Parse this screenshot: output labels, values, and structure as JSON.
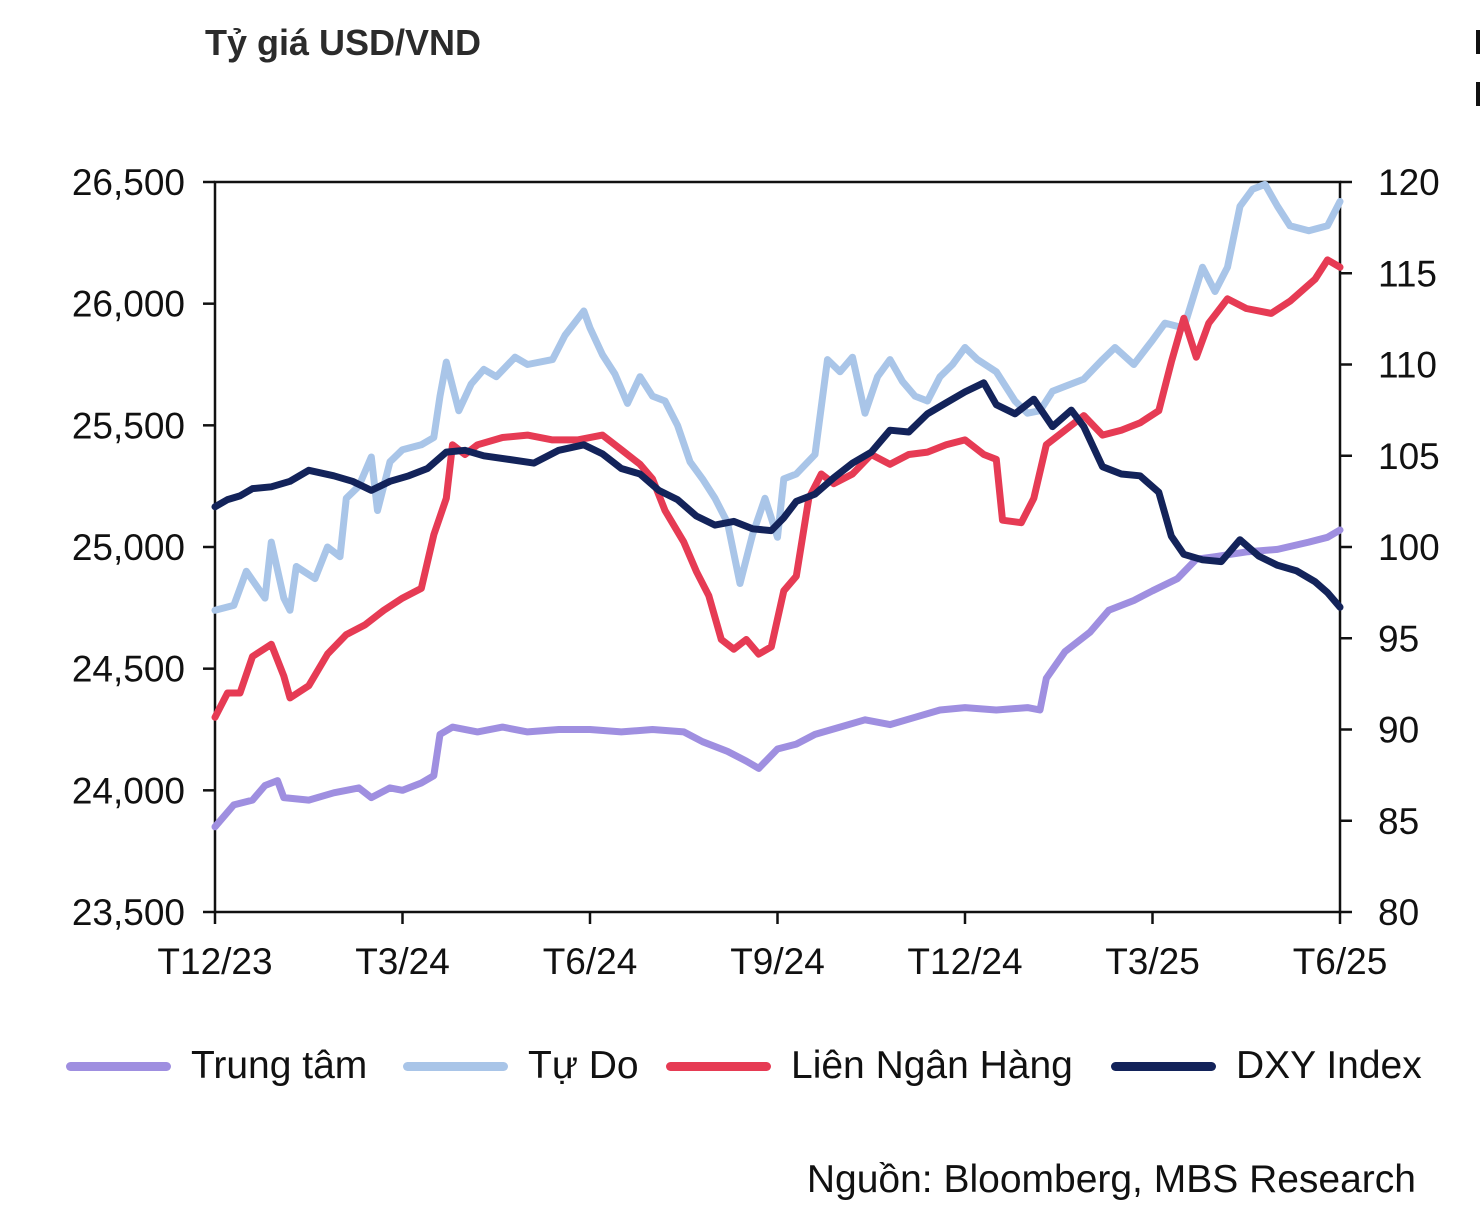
{
  "chart_data": {
    "type": "line",
    "title": "Tỷ giá USD/VND",
    "source": "Nguồn: Bloomberg, MBS Research",
    "x_ticks": [
      "T12/23",
      "T3/24",
      "T6/24",
      "T9/24",
      "T12/24",
      "T3/25",
      "T6/25"
    ],
    "x_range_months": [
      0,
      18
    ],
    "left_axis": {
      "ylim": [
        23500,
        26500
      ],
      "ticks": [
        23500,
        24000,
        24500,
        25000,
        25500,
        26000,
        26500
      ],
      "tick_labels": [
        "23,500",
        "24,000",
        "24,500",
        "25,000",
        "25,500",
        "26,000",
        "26,500"
      ]
    },
    "right_axis": {
      "ylim": [
        80,
        120
      ],
      "ticks": [
        80,
        85,
        90,
        95,
        100,
        105,
        110,
        115,
        120
      ],
      "tick_labels": [
        "80",
        "85",
        "90",
        "95",
        "100",
        "105",
        "110",
        "115",
        "120"
      ]
    },
    "series": [
      {
        "name": "Trung tâm",
        "axis": "left",
        "color": "#9f8fe0",
        "points": [
          [
            0,
            23850
          ],
          [
            0.3,
            23940
          ],
          [
            0.6,
            23960
          ],
          [
            0.8,
            24020
          ],
          [
            1.0,
            24040
          ],
          [
            1.1,
            23970
          ],
          [
            1.5,
            23960
          ],
          [
            1.9,
            23990
          ],
          [
            2.3,
            24010
          ],
          [
            2.5,
            23970
          ],
          [
            2.8,
            24010
          ],
          [
            3.0,
            24000
          ],
          [
            3.3,
            24030
          ],
          [
            3.5,
            24060
          ],
          [
            3.6,
            24230
          ],
          [
            3.8,
            24260
          ],
          [
            4.2,
            24240
          ],
          [
            4.6,
            24260
          ],
          [
            5.0,
            24240
          ],
          [
            5.5,
            24250
          ],
          [
            6.0,
            24250
          ],
          [
            6.5,
            24240
          ],
          [
            7.0,
            24250
          ],
          [
            7.5,
            24240
          ],
          [
            7.8,
            24200
          ],
          [
            8.2,
            24160
          ],
          [
            8.5,
            24120
          ],
          [
            8.7,
            24090
          ],
          [
            9.0,
            24170
          ],
          [
            9.3,
            24190
          ],
          [
            9.6,
            24230
          ],
          [
            10.0,
            24260
          ],
          [
            10.4,
            24290
          ],
          [
            10.8,
            24270
          ],
          [
            11.2,
            24300
          ],
          [
            11.6,
            24330
          ],
          [
            12.0,
            24340
          ],
          [
            12.5,
            24330
          ],
          [
            13.0,
            24340
          ],
          [
            13.2,
            24330
          ],
          [
            13.3,
            24460
          ],
          [
            13.6,
            24570
          ],
          [
            14.0,
            24650
          ],
          [
            14.3,
            24740
          ],
          [
            14.7,
            24780
          ],
          [
            15.0,
            24820
          ],
          [
            15.4,
            24870
          ],
          [
            15.7,
            24950
          ],
          [
            16.0,
            24960
          ],
          [
            16.5,
            24980
          ],
          [
            17.0,
            24990
          ],
          [
            17.5,
            25020
          ],
          [
            17.8,
            25040
          ],
          [
            18.0,
            25070
          ]
        ]
      },
      {
        "name": "Tự Do",
        "axis": "left",
        "color": "#a9c5e8",
        "points": [
          [
            0,
            24740
          ],
          [
            0.3,
            24760
          ],
          [
            0.5,
            24900
          ],
          [
            0.8,
            24790
          ],
          [
            0.9,
            25020
          ],
          [
            1.1,
            24790
          ],
          [
            1.2,
            24740
          ],
          [
            1.3,
            24920
          ],
          [
            1.6,
            24870
          ],
          [
            1.8,
            25000
          ],
          [
            2.0,
            24960
          ],
          [
            2.1,
            25200
          ],
          [
            2.3,
            25250
          ],
          [
            2.5,
            25370
          ],
          [
            2.6,
            25150
          ],
          [
            2.8,
            25350
          ],
          [
            3.0,
            25400
          ],
          [
            3.3,
            25420
          ],
          [
            3.5,
            25450
          ],
          [
            3.6,
            25620
          ],
          [
            3.7,
            25760
          ],
          [
            3.9,
            25560
          ],
          [
            4.1,
            25670
          ],
          [
            4.3,
            25730
          ],
          [
            4.5,
            25700
          ],
          [
            4.8,
            25780
          ],
          [
            5.0,
            25750
          ],
          [
            5.4,
            25770
          ],
          [
            5.6,
            25870
          ],
          [
            5.9,
            25970
          ],
          [
            6.0,
            25900
          ],
          [
            6.2,
            25790
          ],
          [
            6.4,
            25710
          ],
          [
            6.6,
            25590
          ],
          [
            6.8,
            25700
          ],
          [
            7.0,
            25620
          ],
          [
            7.2,
            25600
          ],
          [
            7.4,
            25500
          ],
          [
            7.6,
            25350
          ],
          [
            7.8,
            25280
          ],
          [
            8.0,
            25200
          ],
          [
            8.2,
            25100
          ],
          [
            8.4,
            24850
          ],
          [
            8.6,
            25050
          ],
          [
            8.8,
            25200
          ],
          [
            9.0,
            25040
          ],
          [
            9.1,
            25280
          ],
          [
            9.3,
            25300
          ],
          [
            9.6,
            25380
          ],
          [
            9.8,
            25770
          ],
          [
            10.0,
            25720
          ],
          [
            10.2,
            25780
          ],
          [
            10.4,
            25550
          ],
          [
            10.6,
            25700
          ],
          [
            10.8,
            25770
          ],
          [
            11.0,
            25680
          ],
          [
            11.2,
            25620
          ],
          [
            11.4,
            25600
          ],
          [
            11.6,
            25700
          ],
          [
            11.8,
            25750
          ],
          [
            12.0,
            25820
          ],
          [
            12.2,
            25770
          ],
          [
            12.5,
            25720
          ],
          [
            12.8,
            25600
          ],
          [
            13.0,
            25550
          ],
          [
            13.2,
            25560
          ],
          [
            13.4,
            25640
          ],
          [
            13.6,
            25660
          ],
          [
            13.9,
            25690
          ],
          [
            14.2,
            25770
          ],
          [
            14.4,
            25820
          ],
          [
            14.7,
            25750
          ],
          [
            15.0,
            25850
          ],
          [
            15.2,
            25920
          ],
          [
            15.5,
            25900
          ],
          [
            15.8,
            26150
          ],
          [
            16.0,
            26050
          ],
          [
            16.2,
            26150
          ],
          [
            16.4,
            26400
          ],
          [
            16.6,
            26470
          ],
          [
            16.8,
            26490
          ],
          [
            17.0,
            26400
          ],
          [
            17.2,
            26320
          ],
          [
            17.5,
            26300
          ],
          [
            17.8,
            26320
          ],
          [
            18.0,
            26420
          ]
        ]
      },
      {
        "name": "Liên Ngân Hàng",
        "axis": "left",
        "color": "#e63b54",
        "points": [
          [
            0,
            24300
          ],
          [
            0.2,
            24400
          ],
          [
            0.4,
            24400
          ],
          [
            0.6,
            24550
          ],
          [
            0.9,
            24600
          ],
          [
            1.1,
            24470
          ],
          [
            1.2,
            24380
          ],
          [
            1.5,
            24430
          ],
          [
            1.8,
            24560
          ],
          [
            2.1,
            24640
          ],
          [
            2.4,
            24680
          ],
          [
            2.7,
            24740
          ],
          [
            3.0,
            24790
          ],
          [
            3.3,
            24830
          ],
          [
            3.5,
            25050
          ],
          [
            3.7,
            25200
          ],
          [
            3.8,
            25420
          ],
          [
            4.0,
            25380
          ],
          [
            4.2,
            25420
          ],
          [
            4.6,
            25450
          ],
          [
            5.0,
            25460
          ],
          [
            5.4,
            25440
          ],
          [
            5.8,
            25440
          ],
          [
            6.2,
            25460
          ],
          [
            6.5,
            25400
          ],
          [
            6.8,
            25340
          ],
          [
            7.0,
            25280
          ],
          [
            7.2,
            25150
          ],
          [
            7.5,
            25020
          ],
          [
            7.7,
            24900
          ],
          [
            7.9,
            24800
          ],
          [
            8.1,
            24620
          ],
          [
            8.3,
            24580
          ],
          [
            8.5,
            24620
          ],
          [
            8.7,
            24560
          ],
          [
            8.9,
            24590
          ],
          [
            9.1,
            24820
          ],
          [
            9.3,
            24880
          ],
          [
            9.5,
            25200
          ],
          [
            9.7,
            25300
          ],
          [
            9.9,
            25260
          ],
          [
            10.2,
            25300
          ],
          [
            10.5,
            25380
          ],
          [
            10.8,
            25340
          ],
          [
            11.1,
            25380
          ],
          [
            11.4,
            25390
          ],
          [
            11.7,
            25420
          ],
          [
            12.0,
            25440
          ],
          [
            12.3,
            25380
          ],
          [
            12.5,
            25360
          ],
          [
            12.6,
            25110
          ],
          [
            12.9,
            25100
          ],
          [
            13.1,
            25200
          ],
          [
            13.3,
            25420
          ],
          [
            13.6,
            25480
          ],
          [
            13.9,
            25540
          ],
          [
            14.2,
            25460
          ],
          [
            14.5,
            25480
          ],
          [
            14.8,
            25510
          ],
          [
            15.1,
            25560
          ],
          [
            15.3,
            25760
          ],
          [
            15.5,
            25940
          ],
          [
            15.7,
            25780
          ],
          [
            15.9,
            25920
          ],
          [
            16.2,
            26020
          ],
          [
            16.5,
            25980
          ],
          [
            16.9,
            25960
          ],
          [
            17.2,
            26010
          ],
          [
            17.6,
            26100
          ],
          [
            17.8,
            26180
          ],
          [
            18.0,
            26150
          ]
        ]
      },
      {
        "name": "DXY Index",
        "axis": "right",
        "color": "#13235a",
        "points": [
          [
            0,
            102.2
          ],
          [
            0.2,
            102.6
          ],
          [
            0.4,
            102.8
          ],
          [
            0.6,
            103.2
          ],
          [
            0.9,
            103.3
          ],
          [
            1.2,
            103.6
          ],
          [
            1.5,
            104.2
          ],
          [
            1.9,
            103.9
          ],
          [
            2.2,
            103.6
          ],
          [
            2.5,
            103.1
          ],
          [
            2.8,
            103.6
          ],
          [
            3.1,
            103.9
          ],
          [
            3.4,
            104.3
          ],
          [
            3.7,
            105.2
          ],
          [
            4.0,
            105.3
          ],
          [
            4.3,
            105.0
          ],
          [
            4.7,
            104.8
          ],
          [
            5.1,
            104.6
          ],
          [
            5.5,
            105.3
          ],
          [
            5.9,
            105.6
          ],
          [
            6.2,
            105.1
          ],
          [
            6.5,
            104.3
          ],
          [
            6.8,
            104.0
          ],
          [
            7.1,
            103.1
          ],
          [
            7.4,
            102.6
          ],
          [
            7.7,
            101.7
          ],
          [
            8.0,
            101.2
          ],
          [
            8.3,
            101.4
          ],
          [
            8.6,
            101.0
          ],
          [
            8.9,
            100.9
          ],
          [
            9.1,
            101.6
          ],
          [
            9.3,
            102.5
          ],
          [
            9.6,
            102.9
          ],
          [
            9.9,
            103.8
          ],
          [
            10.2,
            104.6
          ],
          [
            10.5,
            105.2
          ],
          [
            10.8,
            106.4
          ],
          [
            11.1,
            106.3
          ],
          [
            11.4,
            107.3
          ],
          [
            11.7,
            107.9
          ],
          [
            12.0,
            108.5
          ],
          [
            12.3,
            109.0
          ],
          [
            12.5,
            107.8
          ],
          [
            12.8,
            107.3
          ],
          [
            13.1,
            108.1
          ],
          [
            13.4,
            106.6
          ],
          [
            13.7,
            107.5
          ],
          [
            13.9,
            106.6
          ],
          [
            14.2,
            104.4
          ],
          [
            14.5,
            104.0
          ],
          [
            14.8,
            103.9
          ],
          [
            15.1,
            103.0
          ],
          [
            15.3,
            100.6
          ],
          [
            15.5,
            99.6
          ],
          [
            15.8,
            99.3
          ],
          [
            16.1,
            99.2
          ],
          [
            16.4,
            100.4
          ],
          [
            16.7,
            99.5
          ],
          [
            17.0,
            99.0
          ],
          [
            17.3,
            98.7
          ],
          [
            17.6,
            98.1
          ],
          [
            17.8,
            97.5
          ],
          [
            18.0,
            96.7
          ]
        ]
      }
    ]
  }
}
